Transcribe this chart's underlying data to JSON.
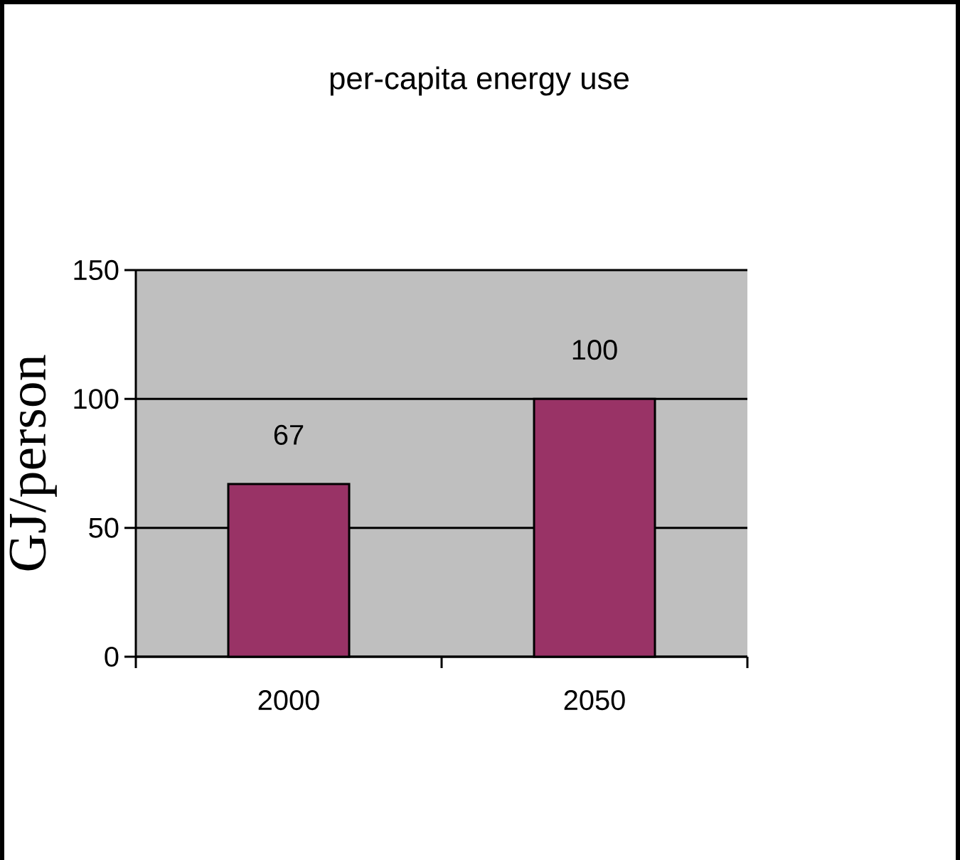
{
  "chart_data": {
    "type": "bar",
    "title": "per-capita energy use",
    "ylabel": "GJ/person",
    "categories": [
      "2000",
      "2050"
    ],
    "values": [
      67,
      100
    ],
    "color": "#993366",
    "ylim": [
      0,
      150
    ],
    "yticks": [
      0,
      50,
      100,
      150
    ],
    "grid": "y",
    "data_labels": true
  }
}
